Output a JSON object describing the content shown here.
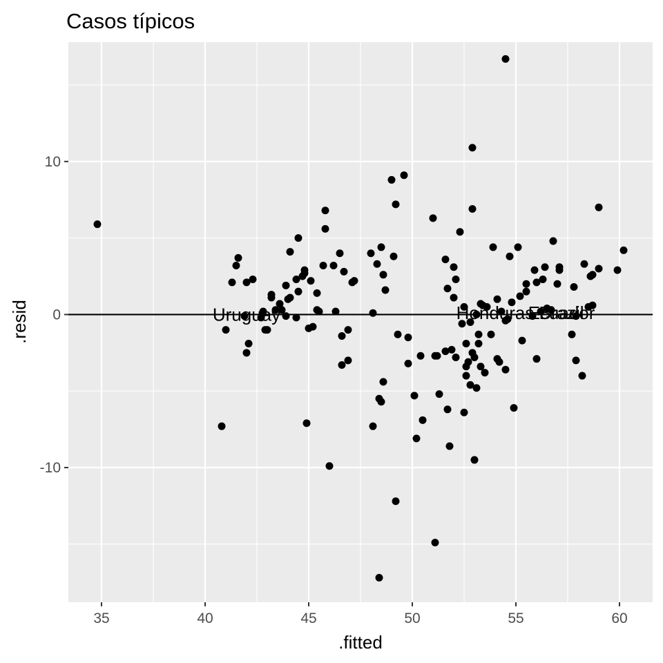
{
  "chart_data": {
    "type": "scatter",
    "title": "Casos típicos",
    "xlabel": ".fitted",
    "ylabel": ".resid",
    "xlim": [
      33.4,
      61.6
    ],
    "ylim": [
      -18.8,
      17.8
    ],
    "x_ticks": [
      35,
      40,
      45,
      50,
      55,
      60
    ],
    "y_ticks": [
      -10,
      0,
      10
    ],
    "x_tick_labels": [
      "35",
      "40",
      "45",
      "50",
      "55",
      "60"
    ],
    "y_tick_labels": [
      "-10",
      "0",
      "10"
    ],
    "x_minor": [
      37.5,
      42.5,
      47.5,
      52.5,
      57.5
    ],
    "y_minor": [
      -15,
      -5,
      5,
      15
    ],
    "grid": true,
    "hline": 0,
    "colors": {
      "panel": "#ebebeb",
      "grid": "#ffffff",
      "point": "#000000",
      "tick": "#4d4d4d"
    },
    "labels": [
      {
        "text": "Uruguay",
        "x": 42.0,
        "y": 0.0
      },
      {
        "text": "Honduras",
        "x": 54.0,
        "y": 0.1
      },
      {
        "text": "Brazil",
        "x": 57.2,
        "y": 0.1
      },
      {
        "text": "Ecuador",
        "x": 57.2,
        "y": 0.1
      }
    ],
    "points": [
      [
        34.8,
        5.9
      ],
      [
        40.8,
        -7.3
      ],
      [
        41.0,
        -1.0
      ],
      [
        41.3,
        2.1
      ],
      [
        41.5,
        3.2
      ],
      [
        41.6,
        3.7
      ],
      [
        41.9,
        -0.1
      ],
      [
        42.0,
        -2.5
      ],
      [
        42.0,
        2.1
      ],
      [
        42.1,
        -1.9
      ],
      [
        42.3,
        2.3
      ],
      [
        42.7,
        -0.2
      ],
      [
        42.8,
        0.2
      ],
      [
        42.9,
        -1.0
      ],
      [
        43.0,
        -1.0
      ],
      [
        43.2,
        1.3
      ],
      [
        43.2,
        1.1
      ],
      [
        43.4,
        0.3
      ],
      [
        43.6,
        0.7
      ],
      [
        43.7,
        0.3
      ],
      [
        43.9,
        1.9
      ],
      [
        43.9,
        -0.1
      ],
      [
        44.0,
        1.0
      ],
      [
        44.1,
        1.1
      ],
      [
        44.1,
        4.1
      ],
      [
        44.4,
        -0.2
      ],
      [
        44.4,
        2.3
      ],
      [
        44.5,
        5.0
      ],
      [
        44.5,
        1.5
      ],
      [
        44.7,
        2.5
      ],
      [
        44.8,
        2.9
      ],
      [
        44.8,
        2.7
      ],
      [
        44.9,
        -7.1
      ],
      [
        45.0,
        -0.9
      ],
      [
        45.1,
        2.2
      ],
      [
        45.2,
        -0.8
      ],
      [
        45.4,
        1.4
      ],
      [
        45.4,
        0.3
      ],
      [
        45.5,
        0.2
      ],
      [
        45.7,
        3.2
      ],
      [
        45.8,
        6.8
      ],
      [
        45.8,
        5.6
      ],
      [
        46.0,
        -9.9
      ],
      [
        46.2,
        3.2
      ],
      [
        46.3,
        0.2
      ],
      [
        46.5,
        4.0
      ],
      [
        46.6,
        -1.4
      ],
      [
        46.6,
        -3.3
      ],
      [
        46.7,
        2.8
      ],
      [
        46.9,
        -1.0
      ],
      [
        46.9,
        -3.0
      ],
      [
        47.1,
        2.1
      ],
      [
        47.2,
        2.2
      ],
      [
        48.0,
        4.0
      ],
      [
        48.1,
        -7.3
      ],
      [
        48.1,
        0.1
      ],
      [
        48.3,
        3.3
      ],
      [
        48.4,
        -5.5
      ],
      [
        48.4,
        -17.2
      ],
      [
        48.5,
        -5.7
      ],
      [
        48.5,
        4.4
      ],
      [
        48.6,
        2.6
      ],
      [
        48.6,
        -4.4
      ],
      [
        48.7,
        1.6
      ],
      [
        49.0,
        8.8
      ],
      [
        49.1,
        3.8
      ],
      [
        49.2,
        7.2
      ],
      [
        49.2,
        -12.2
      ],
      [
        49.3,
        -1.3
      ],
      [
        49.6,
        9.1
      ],
      [
        49.8,
        -1.5
      ],
      [
        49.8,
        -3.2
      ],
      [
        50.1,
        -5.3
      ],
      [
        50.2,
        -8.1
      ],
      [
        50.4,
        -2.7
      ],
      [
        50.5,
        -6.9
      ],
      [
        51.0,
        6.3
      ],
      [
        51.1,
        -14.9
      ],
      [
        51.1,
        -2.7
      ],
      [
        51.2,
        -2.7
      ],
      [
        51.3,
        -5.2
      ],
      [
        51.6,
        3.6
      ],
      [
        51.6,
        -2.4
      ],
      [
        51.7,
        1.7
      ],
      [
        51.7,
        -6.2
      ],
      [
        51.8,
        -8.6
      ],
      [
        51.9,
        -2.3
      ],
      [
        52.0,
        1.1
      ],
      [
        52.0,
        3.1
      ],
      [
        52.1,
        -2.8
      ],
      [
        52.1,
        2.3
      ],
      [
        52.3,
        5.4
      ],
      [
        52.4,
        -0.6
      ],
      [
        52.5,
        0.5
      ],
      [
        52.5,
        -6.4
      ],
      [
        52.6,
        -1.9
      ],
      [
        52.6,
        -3.4
      ],
      [
        52.6,
        -4.0
      ],
      [
        52.7,
        -3.1
      ],
      [
        52.8,
        -0.5
      ],
      [
        52.8,
        -4.6
      ],
      [
        52.9,
        6.9
      ],
      [
        52.9,
        10.9
      ],
      [
        52.9,
        -2.5
      ],
      [
        53.0,
        -9.5
      ],
      [
        53.0,
        -2.8
      ],
      [
        53.1,
        0.0
      ],
      [
        53.1,
        -4.8
      ],
      [
        53.2,
        -1.9
      ],
      [
        53.2,
        -1.3
      ],
      [
        53.3,
        0.7
      ],
      [
        53.3,
        -3.4
      ],
      [
        53.4,
        0.6
      ],
      [
        53.5,
        -3.8
      ],
      [
        53.6,
        0.5
      ],
      [
        53.8,
        -1.3
      ],
      [
        53.9,
        4.4
      ],
      [
        54.1,
        1.0
      ],
      [
        54.1,
        -2.9
      ],
      [
        54.2,
        -3.1
      ],
      [
        54.3,
        0.2
      ],
      [
        54.5,
        16.7
      ],
      [
        54.5,
        -0.4
      ],
      [
        54.5,
        -3.6
      ],
      [
        54.6,
        -0.3
      ],
      [
        54.7,
        3.8
      ],
      [
        54.8,
        0.8
      ],
      [
        54.9,
        -6.1
      ],
      [
        55.1,
        4.4
      ],
      [
        55.2,
        1.2
      ],
      [
        55.3,
        -1.7
      ],
      [
        55.5,
        2.0
      ],
      [
        55.5,
        1.5
      ],
      [
        55.8,
        -0.1
      ],
      [
        55.9,
        2.9
      ],
      [
        56.0,
        2.1
      ],
      [
        56.0,
        -2.9
      ],
      [
        56.2,
        0.2
      ],
      [
        56.3,
        2.3
      ],
      [
        56.4,
        3.1
      ],
      [
        56.5,
        0.4
      ],
      [
        56.7,
        0.3
      ],
      [
        56.8,
        4.8
      ],
      [
        57.0,
        2.0
      ],
      [
        57.1,
        3.1
      ],
      [
        57.1,
        2.9
      ],
      [
        57.7,
        -1.3
      ],
      [
        57.8,
        1.8
      ],
      [
        57.9,
        -0.1
      ],
      [
        57.9,
        -3.0
      ],
      [
        58.2,
        -4.0
      ],
      [
        58.3,
        3.3
      ],
      [
        58.5,
        0.5
      ],
      [
        58.6,
        2.5
      ],
      [
        58.7,
        2.6
      ],
      [
        58.7,
        0.6
      ],
      [
        59.0,
        7.0
      ],
      [
        59.0,
        3.0
      ],
      [
        59.9,
        2.9
      ],
      [
        60.2,
        4.2
      ]
    ]
  }
}
